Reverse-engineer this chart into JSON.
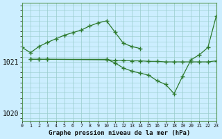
{
  "xlabel": "Graphe pression niveau de la mer (hPa)",
  "line_color": "#2d7a2d",
  "bg_color": "#cceeff",
  "plot_bg": "#cceeff",
  "grid_color": "#99cccc",
  "ylim": [
    1019.85,
    1022.15
  ],
  "yticks": [
    1020,
    1021
  ],
  "xlim": [
    0,
    23
  ],
  "curve1_x": [
    0,
    1,
    2,
    3,
    4,
    5,
    6,
    7,
    8,
    9,
    10,
    11,
    12,
    13,
    14
  ],
  "curve1_y": [
    1021.28,
    1021.18,
    1021.3,
    1021.38,
    1021.45,
    1021.52,
    1021.57,
    1021.62,
    1021.7,
    1021.76,
    1021.8,
    1021.58,
    1021.36,
    1021.3,
    1021.26
  ],
  "curve2_x": [
    1,
    2,
    3,
    10,
    11,
    12,
    13,
    14,
    15,
    16,
    17,
    18,
    19,
    20,
    21,
    22,
    23
  ],
  "curve2_y": [
    1021.05,
    1021.05,
    1021.05,
    1021.05,
    1020.98,
    1020.88,
    1020.82,
    1020.78,
    1020.74,
    1020.63,
    1020.56,
    1020.38,
    1020.72,
    1021.04,
    1021.14,
    1021.28,
    1021.9
  ],
  "curve3_x": [
    1,
    2,
    3,
    10,
    11,
    12,
    13,
    14,
    15,
    16,
    17,
    18,
    19,
    20,
    21,
    22,
    23
  ],
  "curve3_y": [
    1021.05,
    1021.05,
    1021.05,
    1021.04,
    1021.03,
    1021.03,
    1021.02,
    1021.02,
    1021.01,
    1021.01,
    1021.0,
    1021.0,
    1021.0,
    1021.0,
    1021.0,
    1021.0,
    1021.02
  ]
}
